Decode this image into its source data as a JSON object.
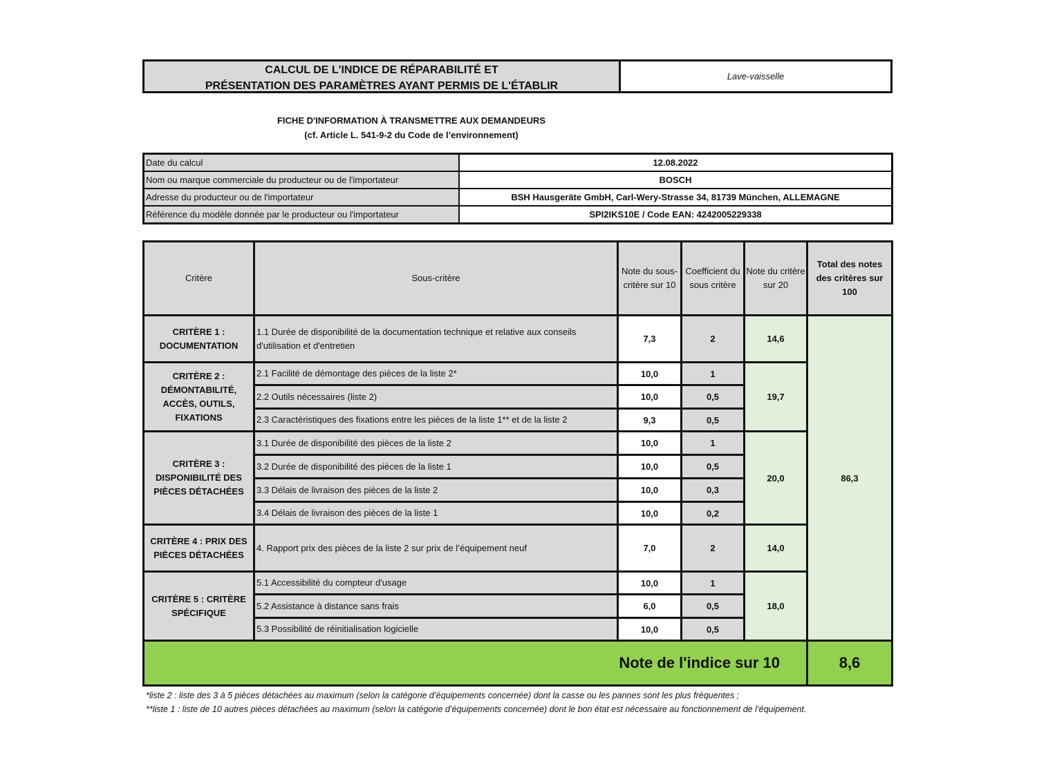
{
  "header": {
    "title_line1": "CALCUL DE L'INDICE DE RÉPARABILITÉ ET",
    "title_line2": "PRÉSENTATION DES PARAMÈTRES AYANT PERMIS DE L'ÉTABLIR",
    "product_type": "Lave-vaisselle"
  },
  "subtitle": {
    "line1": "FICHE D'INFORMATION À TRANSMETTRE AUX DEMANDEURS",
    "line2": "(cf. Article L. 541-9-2 du Code de l’environnement)"
  },
  "info": [
    {
      "label": "Date du calcul",
      "value": "12.08.2022"
    },
    {
      "label": "Nom ou marque commerciale du producteur ou de l'importateur",
      "value": "BOSCH"
    },
    {
      "label": "Adresse du producteur ou de l'importateur",
      "value": "BSH Hausgeräte GmbH, Carl-Wery-Strasse 34, 81739 München, ALLEMAGNE"
    },
    {
      "label": "Référence du modèle donnée par le producteur ou l'importateur",
      "value": "SPI2IKS10E / Code EAN: 4242005229338"
    }
  ],
  "columns": {
    "critere": "Critère",
    "sous_critere": "Sous-critère",
    "note_sous": "Note du sous-critère sur 10",
    "coef": "Coefficient du sous critère",
    "note_crit": "Note du critère sur 20",
    "total": "Total des notes des critères sur 100"
  },
  "criteria": [
    {
      "name": "CRITÈRE 1 : DOCUMENTATION",
      "score": "14,6",
      "subs": [
        {
          "label": "1.1 Durée de disponibilité de la documentation technique et relative aux conseils d'utilisation et d'entretien",
          "note": "7,3",
          "coef": "2"
        }
      ]
    },
    {
      "name": "CRITÈRE 2 : DÉMONTABILITÉ, ACCÈS, OUTILS, FIXATIONS",
      "score": "19,7",
      "subs": [
        {
          "label": "2.1 Facilité de démontage des pièces de la liste 2*",
          "note": "10,0",
          "coef": "1"
        },
        {
          "label": "2.2 Outils nécessaires (liste 2)",
          "note": "10,0",
          "coef": "0,5"
        },
        {
          "label": "2.3 Caractéristiques des fixations entre les pièces de la liste 1** et de la liste 2",
          "note": "9,3",
          "coef": "0,5"
        }
      ]
    },
    {
      "name": "CRITÈRE 3 : DISPONIBILITÉ DES PIÈCES DÉTACHÉES",
      "score": "20,0",
      "subs": [
        {
          "label": "3.1 Durée de disponibilité des pièces de la liste 2",
          "note": "10,0",
          "coef": "1"
        },
        {
          "label": "3.2 Durée de disponibilité des pièces de la liste 1",
          "note": "10,0",
          "coef": "0,5"
        },
        {
          "label": "3.3 Délais de livraison des pièces de la liste 2",
          "note": "10,0",
          "coef": "0,3"
        },
        {
          "label": "3.4 Délais de livraison des pièces de la liste 1",
          "note": "10,0",
          "coef": "0,2"
        }
      ]
    },
    {
      "name": "CRITÈRE 4 : PRIX DES PIÈCES DÉTACHÉES",
      "score": "14,0",
      "subs": [
        {
          "label": "4. Rapport prix des pièces de la liste 2 sur prix de l’équipement neuf",
          "note": "7,0",
          "coef": "2"
        }
      ]
    },
    {
      "name": "CRITÈRE 5 : CRITÈRE SPÉCIFIQUE",
      "score": "18,0",
      "subs": [
        {
          "label": "5.1 Accessibilité du compteur d'usage",
          "note": "10,0",
          "coef": "1"
        },
        {
          "label": "5.2 Assistance à distance sans frais",
          "note": "6,0",
          "coef": "0,5"
        },
        {
          "label": "5.3 Possibilité de réinitialisation logicielle",
          "note": "10,0",
          "coef": "0,5"
        }
      ]
    }
  ],
  "total": "86,3",
  "index": {
    "label": "Note de l'indice sur 10",
    "value": "8,6"
  },
  "notes": [
    "*liste 2 : liste des 3 à 5 pièces détachées au maximum (selon la catégorie d’équipements concernée) dont la casse ou les pannes sont les plus fréquentes ;",
    "**liste 1 : liste de 10 autres pièces détachées au maximum (selon la catégorie d’équipements concernée) dont le bon état est nécessaire au fonctionnement de l’équipement."
  ],
  "colors": {
    "header_gray": "#d9d9d9",
    "criterion_green": "#e2efda",
    "index_green": "#92d050"
  }
}
